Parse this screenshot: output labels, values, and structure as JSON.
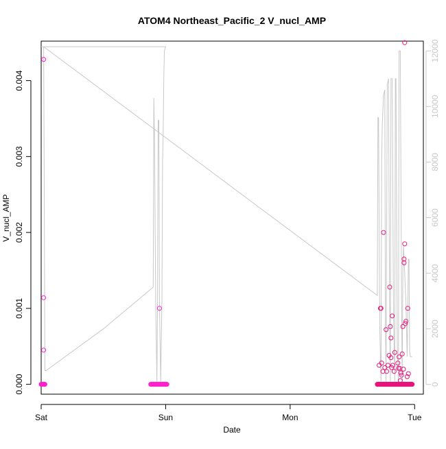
{
  "chart_data": {
    "type": "scatter",
    "title": "ATOM4 Northeast_Pacific_2 V_nucl_AMP",
    "xlabel": "Date",
    "ylabel": "V_nucl_AMP",
    "xlim": [
      0,
      3.07
    ],
    "ylim": [
      -0.00013,
      0.00452
    ],
    "y2lim": [
      -350,
      12350
    ],
    "x_ticks": [
      {
        "value": 0,
        "label": "Sat"
      },
      {
        "value": 1,
        "label": "Sun"
      },
      {
        "value": 2,
        "label": "Mon"
      },
      {
        "value": 3,
        "label": "Tue"
      }
    ],
    "y_ticks": [
      {
        "value": 0,
        "label": "0.000"
      },
      {
        "value": 0.001,
        "label": "0.001"
      },
      {
        "value": 0.002,
        "label": "0.002"
      },
      {
        "value": 0.003,
        "label": "0.003"
      },
      {
        "value": 0.004,
        "label": "0.004"
      }
    ],
    "y2_ticks": [
      {
        "value": 0,
        "label": "0"
      },
      {
        "value": 2000,
        "label": "2000"
      },
      {
        "value": 4000,
        "label": "4000"
      },
      {
        "value": 6000,
        "label": "6000"
      },
      {
        "value": 8000,
        "label": "8000"
      },
      {
        "value": 10000,
        "label": "10000"
      },
      {
        "value": 12000,
        "label": "12000"
      }
    ],
    "grid": false,
    "colors": {
      "points": "#e8147a",
      "points_alt": "#ff22cc",
      "line": "#c8c8c8",
      "axis": "#000000",
      "right_axis": "#c8c8c8"
    },
    "series": [
      {
        "role": "points",
        "axis": "left",
        "clusters": [
          {
            "x_start": 0.0,
            "x_end": 0.03,
            "y": 0.0,
            "count": 8
          },
          {
            "x_start": 0.88,
            "x_end": 1.01,
            "y": 0.0,
            "count": 30
          },
          {
            "x_start": 2.7,
            "x_end": 2.98,
            "y": 0.0,
            "count": 90
          }
        ],
        "points": [
          {
            "x": 0.02,
            "y": 0.00428
          },
          {
            "x": 0.02,
            "y": 0.00114
          },
          {
            "x": 0.02,
            "y": 0.00045
          },
          {
            "x": 0.95,
            "y": 0.001
          },
          {
            "x": 2.715,
            "y": 0.00025
          },
          {
            "x": 2.725,
            "y": 0.001
          },
          {
            "x": 2.73,
            "y": 0.001
          },
          {
            "x": 2.735,
            "y": 0.00028
          },
          {
            "x": 2.745,
            "y": 0.00017
          },
          {
            "x": 2.75,
            "y": 0.002
          },
          {
            "x": 2.76,
            "y": 0.00022
          },
          {
            "x": 2.77,
            "y": 0.00072
          },
          {
            "x": 2.775,
            "y": 0.00017
          },
          {
            "x": 2.785,
            "y": 0.00025
          },
          {
            "x": 2.795,
            "y": 0.00038
          },
          {
            "x": 2.8,
            "y": 0.00128
          },
          {
            "x": 2.805,
            "y": 0.00076
          },
          {
            "x": 2.81,
            "y": 0.00061
          },
          {
            "x": 2.81,
            "y": 0.00035
          },
          {
            "x": 2.815,
            "y": 0.00022
          },
          {
            "x": 2.82,
            "y": 0.0009
          },
          {
            "x": 2.825,
            "y": 0.00025
          },
          {
            "x": 2.835,
            "y": 0.00017
          },
          {
            "x": 2.84,
            "y": 0.00042
          },
          {
            "x": 2.865,
            "y": 0.00028
          },
          {
            "x": 2.87,
            "y": 0.00021
          },
          {
            "x": 2.875,
            "y": 0.00036
          },
          {
            "x": 2.88,
            "y": 0.00021
          },
          {
            "x": 2.885,
            "y": 5e-05
          },
          {
            "x": 2.89,
            "y": 0.00015
          },
          {
            "x": 2.895,
            "y": 0.00012
          },
          {
            "x": 2.9,
            "y": 0.0004
          },
          {
            "x": 2.905,
            "y": 0.00076
          },
          {
            "x": 2.91,
            "y": 0.0002
          },
          {
            "x": 2.915,
            "y": 0.00165
          },
          {
            "x": 2.915,
            "y": 0.0016
          },
          {
            "x": 2.92,
            "y": 0.00185
          },
          {
            "x": 2.925,
            "y": 0.0008
          },
          {
            "x": 2.93,
            "y": 0.00083
          },
          {
            "x": 2.94,
            "y": 0.0001
          },
          {
            "x": 2.945,
            "y": 0.001
          },
          {
            "x": 2.95,
            "y": 0.00014
          },
          {
            "x": 2.92,
            "y": 0.0045
          }
        ]
      },
      {
        "role": "line",
        "axis": "right",
        "x": [
          0.0,
          0.01,
          0.02,
          0.025,
          0.03,
          0.04,
          0.5,
          0.9,
          0.905,
          0.91,
          0.92,
          0.93,
          0.935,
          0.94,
          0.945,
          0.95,
          0.96,
          0.97,
          0.975,
          0.98,
          0.985,
          0.99,
          1.0,
          1.0,
          1.0,
          0.99,
          0.97,
          0.95,
          0.9,
          0.5,
          0.05,
          0.03,
          0.02,
          0.02,
          2.7,
          2.705,
          2.71,
          2.72,
          2.73,
          2.735,
          2.74,
          2.75,
          2.76,
          2.765,
          2.77,
          2.78,
          2.79,
          2.8,
          2.805,
          2.81,
          2.82,
          2.83,
          2.84,
          2.845,
          2.85,
          2.86,
          2.87,
          2.875,
          2.885,
          2.895,
          2.9,
          2.905,
          2.91,
          2.92,
          2.93,
          2.935,
          2.94,
          2.95,
          2.955,
          2.96,
          2.965,
          2.97,
          2.975,
          2.98
        ],
        "y": [
          12150,
          12150,
          12150,
          7000,
          500,
          500,
          2000,
          3500,
          10300,
          9000,
          3000,
          100,
          3000,
          9500,
          9500,
          3000,
          100,
          3000,
          8000,
          9000,
          11000,
          12000,
          12150,
          12150,
          12150,
          12150,
          12150,
          12150,
          12150,
          12150,
          12150,
          12150,
          12150,
          12150,
          3200,
          9600,
          9600,
          2000,
          100,
          8000,
          9300,
          10400,
          10600,
          2500,
          100,
          10800,
          11000,
          2000,
          100,
          11000,
          11000,
          2500,
          100,
          11000,
          11000,
          1500,
          100,
          12000,
          12000,
          3000,
          100,
          4000,
          5000,
          4000,
          3000,
          2000,
          1000,
          4500,
          4500,
          1200,
          1000,
          1000,
          1000,
          1000
        ]
      }
    ]
  }
}
